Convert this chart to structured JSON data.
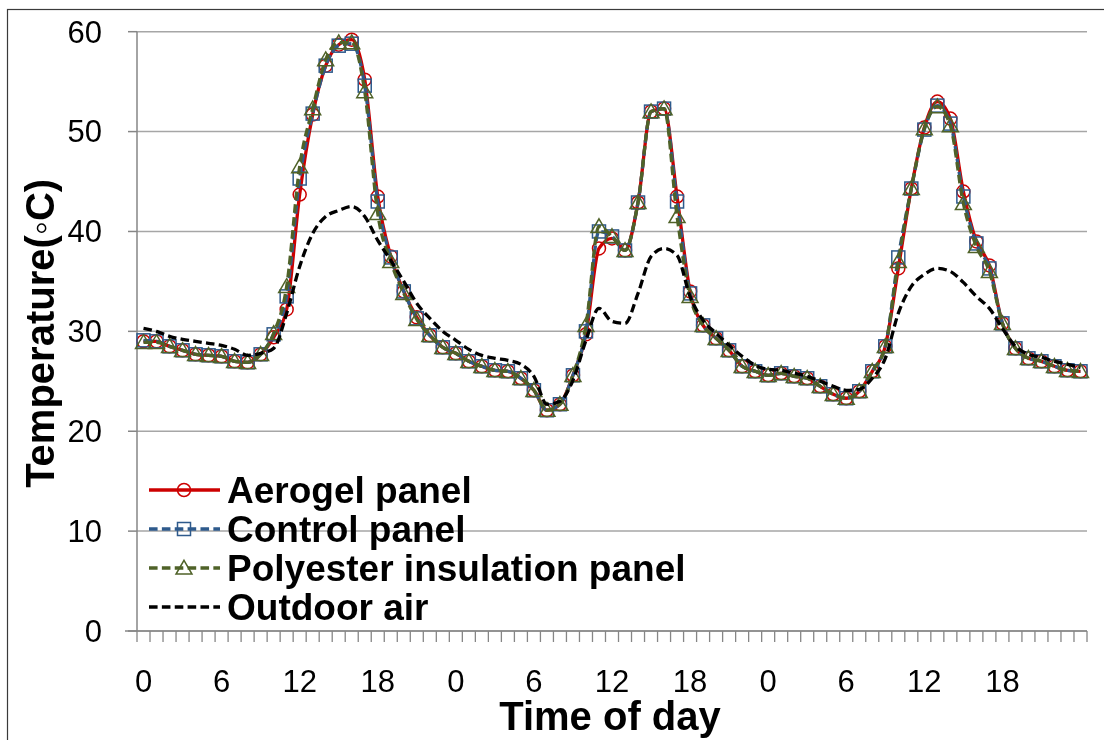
{
  "chart_data": {
    "type": "line",
    "xlabel": "Time of day",
    "ylabel": "Temperature(◦C)",
    "categories": [
      "0",
      null,
      null,
      null,
      null,
      null,
      "6",
      null,
      null,
      null,
      null,
      null,
      "12",
      null,
      null,
      null,
      null,
      null,
      "18",
      null,
      null,
      null,
      null,
      null,
      "0",
      null,
      null,
      null,
      null,
      null,
      "6",
      null,
      null,
      null,
      null,
      null,
      "12",
      null,
      null,
      null,
      null,
      null,
      "18",
      null,
      null,
      null,
      null,
      null,
      "0",
      null,
      null,
      null,
      null,
      null,
      "6",
      null,
      null,
      null,
      null,
      null,
      "12",
      null,
      null,
      null,
      null,
      null,
      "18",
      null,
      null,
      null,
      null,
      null,
      null
    ],
    "ylim": [
      0,
      60
    ],
    "yticks": [
      0,
      10,
      20,
      30,
      40,
      50,
      60
    ],
    "grid": "y",
    "legend": "bottom left",
    "series": [
      {
        "name": "Aerogel panel",
        "color": "#cc0000",
        "marker": "circle",
        "line_style": "solid",
        "values": [
          29.0,
          29.0,
          28.5,
          28.1,
          27.7,
          27.6,
          27.5,
          27.0,
          26.9,
          27.7,
          29.4,
          32.2,
          43.7,
          51.7,
          56.6,
          58.7,
          59.2,
          55.2,
          43.5,
          37.5,
          34.0,
          31.4,
          29.6,
          28.4,
          27.8,
          27.0,
          26.5,
          26.1,
          26.0,
          25.3,
          24.1,
          22.1,
          22.7,
          25.6,
          29.7,
          38.3,
          39.3,
          38.1,
          42.9,
          52.0,
          52.3,
          43.5,
          34.0,
          30.6,
          29.3,
          28.1,
          26.5,
          26.0,
          25.6,
          25.8,
          25.5,
          25.3,
          24.5,
          23.7,
          23.3,
          24.0,
          26.0,
          28.5,
          36.3,
          44.3,
          50.4,
          53.0,
          51.3,
          44.0,
          39.0,
          36.6,
          30.8,
          28.3,
          27.3,
          27.0,
          26.5,
          26.1,
          26.0
        ]
      },
      {
        "name": "Control panel",
        "color": "#2e5a8c",
        "marker": "square",
        "line_style": "dashed",
        "values": [
          29.1,
          29.0,
          28.5,
          28.1,
          27.7,
          27.6,
          27.5,
          27.0,
          26.9,
          27.7,
          29.7,
          33.5,
          45.3,
          51.8,
          56.6,
          58.6,
          58.8,
          54.6,
          43.0,
          37.4,
          34.0,
          31.3,
          29.6,
          28.4,
          27.8,
          27.0,
          26.5,
          26.1,
          26.0,
          25.3,
          24.1,
          22.1,
          22.7,
          25.6,
          30.0,
          40.0,
          39.5,
          38.1,
          42.9,
          52.0,
          52.3,
          43.0,
          33.8,
          30.6,
          29.3,
          28.1,
          26.5,
          26.0,
          25.6,
          25.8,
          25.5,
          25.3,
          24.5,
          23.7,
          23.3,
          24.0,
          26.0,
          28.5,
          37.4,
          44.3,
          50.2,
          52.6,
          50.8,
          43.5,
          38.8,
          36.3,
          30.8,
          28.3,
          27.3,
          27.0,
          26.5,
          26.1,
          26.0
        ]
      },
      {
        "name": "Polyester insulation panel",
        "color": "#4f6228",
        "marker": "triangle",
        "line_style": "dashed",
        "values": [
          28.9,
          28.9,
          28.5,
          28.1,
          27.7,
          27.6,
          27.5,
          27.0,
          26.9,
          27.7,
          29.8,
          34.5,
          46.5,
          52.3,
          57.2,
          58.9,
          58.9,
          54.0,
          41.8,
          37.0,
          33.8,
          31.2,
          29.6,
          28.4,
          27.8,
          27.0,
          26.5,
          26.1,
          26.0,
          25.3,
          24.1,
          22.1,
          22.7,
          25.6,
          30.6,
          40.5,
          39.5,
          38.1,
          42.9,
          52.0,
          52.3,
          41.5,
          33.5,
          30.6,
          29.3,
          28.1,
          26.5,
          26.0,
          25.6,
          25.8,
          25.5,
          25.3,
          24.5,
          23.7,
          23.3,
          24.0,
          26.0,
          28.5,
          37.0,
          44.3,
          50.3,
          52.5,
          50.6,
          42.8,
          38.5,
          36.0,
          30.8,
          28.3,
          27.3,
          27.0,
          26.5,
          26.1,
          26.0
        ]
      },
      {
        "name": "Outdoor air",
        "color": "#000000",
        "marker": "none",
        "line_style": "dashed",
        "values": [
          30.3,
          30.0,
          29.5,
          29.2,
          29.0,
          28.8,
          28.6,
          28.2,
          27.6,
          27.8,
          28.3,
          31.8,
          36.5,
          39.8,
          41.5,
          42.1,
          42.5,
          41.5,
          39.1,
          37.1,
          35.0,
          32.8,
          31.3,
          30.0,
          29.1,
          28.2,
          27.6,
          27.3,
          27.1,
          26.7,
          25.5,
          22.7,
          23.0,
          25.1,
          29.1,
          32.3,
          31.0,
          30.8,
          33.8,
          37.5,
          38.3,
          37.6,
          33.5,
          31.1,
          29.8,
          28.6,
          27.5,
          26.6,
          26.2,
          26.1,
          25.8,
          25.5,
          25.0,
          24.5,
          24.1,
          24.2,
          25.3,
          27.3,
          31.8,
          34.5,
          35.7,
          36.3,
          36.0,
          34.9,
          33.5,
          32.3,
          30.3,
          28.5,
          27.7,
          27.4,
          27.0,
          26.7,
          26.4
        ]
      }
    ]
  }
}
